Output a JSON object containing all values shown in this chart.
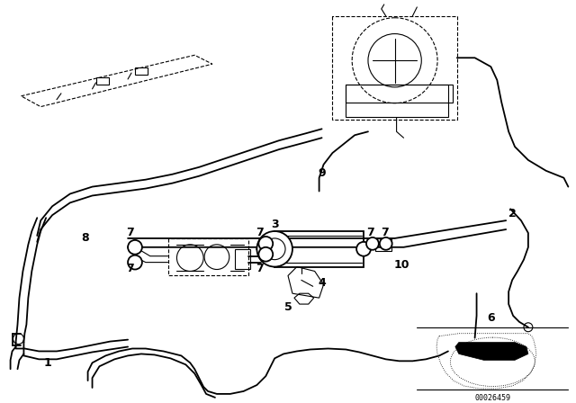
{
  "bg_color": "#ffffff",
  "line_color": "#000000",
  "diagram_code": "00026459",
  "lw_main": 1.3,
  "lw_thin": 0.8,
  "label_fs": 9
}
